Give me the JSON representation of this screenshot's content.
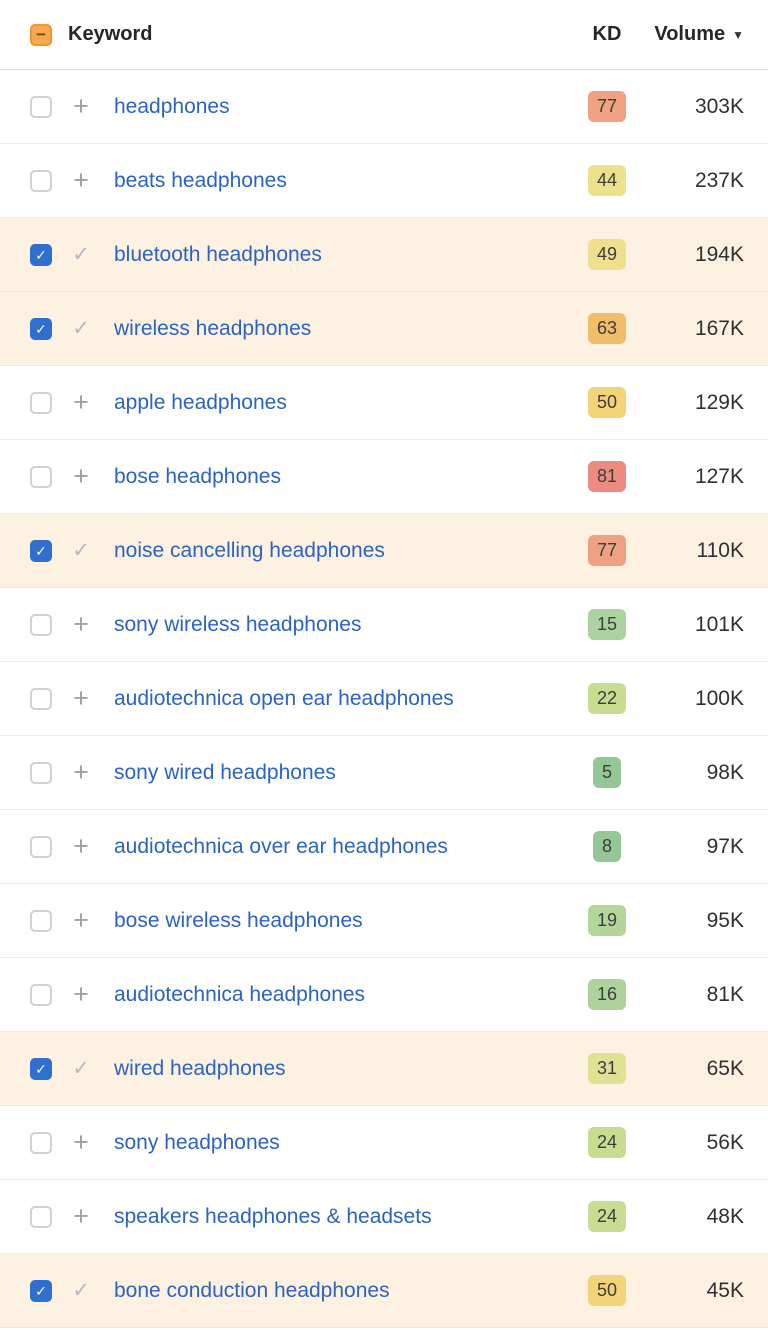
{
  "header": {
    "keyword_label": "Keyword",
    "kd_label": "KD",
    "volume_label": "Volume"
  },
  "icons": {
    "select_all_minus": "−",
    "sort_desc": "▼",
    "add_plus": "+",
    "added_check": "✓",
    "checkbox_check": "✓"
  },
  "colors": {
    "selected_row_bg": "#fdf2e2",
    "link_blue": "#2b63c5",
    "checkbox_checked_blue": "#2f6fce",
    "select_all_orange": "#f9a94c",
    "kd_green": "#94c795",
    "kd_yellow": "#eee08d",
    "kd_orange": "#f2bd68",
    "kd_red": "#ec8b80"
  },
  "rows": [
    {
      "keyword": "headphones",
      "kd": "77",
      "kd_color": "#f0a183",
      "volume": "303K",
      "selected": false
    },
    {
      "keyword": "beats headphones",
      "kd": "44",
      "kd_color": "#eee08d",
      "volume": "237K",
      "selected": false
    },
    {
      "keyword": "bluetooth headphones",
      "kd": "49",
      "kd_color": "#eee08d",
      "volume": "194K",
      "selected": true
    },
    {
      "keyword": "wireless headphones",
      "kd": "63",
      "kd_color": "#f2bd68",
      "volume": "167K",
      "selected": true
    },
    {
      "keyword": "apple headphones",
      "kd": "50",
      "kd_color": "#f2d377",
      "volume": "129K",
      "selected": false
    },
    {
      "keyword": "bose headphones",
      "kd": "81",
      "kd_color": "#ec8b80",
      "volume": "127K",
      "selected": false
    },
    {
      "keyword": "noise cancelling headphones",
      "kd": "77",
      "kd_color": "#f0a183",
      "volume": "110K",
      "selected": true
    },
    {
      "keyword": "sony wireless headphones",
      "kd": "15",
      "kd_color": "#abd3a0",
      "volume": "101K",
      "selected": false
    },
    {
      "keyword": "audiotechnica open ear headphones",
      "kd": "22",
      "kd_color": "#c8dc92",
      "volume": "100K",
      "selected": false
    },
    {
      "keyword": "sony wired headphones",
      "kd": "5",
      "kd_color": "#94c795",
      "volume": "98K",
      "selected": false
    },
    {
      "keyword": "audiotechnica over ear headphones",
      "kd": "8",
      "kd_color": "#94c795",
      "volume": "97K",
      "selected": false
    },
    {
      "keyword": "bose wireless headphones",
      "kd": "19",
      "kd_color": "#b4d69b",
      "volume": "95K",
      "selected": false
    },
    {
      "keyword": "audiotechnica headphones",
      "kd": "16",
      "kd_color": "#aed29c",
      "volume": "81K",
      "selected": false
    },
    {
      "keyword": "wired headphones",
      "kd": "31",
      "kd_color": "#e0e293",
      "volume": "65K",
      "selected": true
    },
    {
      "keyword": "sony headphones",
      "kd": "24",
      "kd_color": "#c8dc92",
      "volume": "56K",
      "selected": false
    },
    {
      "keyword": "speakers headphones & headsets",
      "kd": "24",
      "kd_color": "#c8dc92",
      "volume": "48K",
      "selected": false
    },
    {
      "keyword": "bone conduction headphones",
      "kd": "50",
      "kd_color": "#f2d377",
      "volume": "45K",
      "selected": true
    }
  ]
}
